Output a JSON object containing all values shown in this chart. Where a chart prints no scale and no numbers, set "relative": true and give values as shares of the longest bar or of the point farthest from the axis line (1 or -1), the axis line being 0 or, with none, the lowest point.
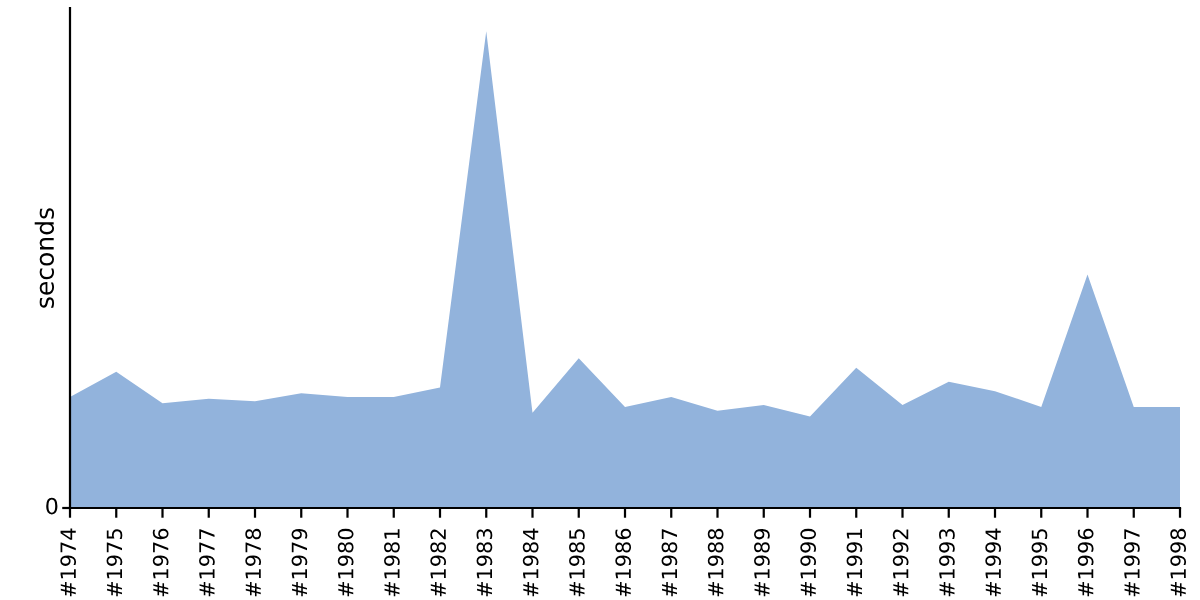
{
  "chart_data": {
    "type": "area",
    "ylabel": "seconds",
    "relative": true,
    "annotations": [
      "0"
    ],
    "color": "#92b3dc",
    "grid": false,
    "categories": [
      "#1974",
      "#1975",
      "#1976",
      "#1977",
      "#1978",
      "#1979",
      "#1980",
      "#1981",
      "#1982",
      "#1983",
      "#1984",
      "#1985",
      "#1986",
      "#1987",
      "#1988",
      "#1989",
      "#1990",
      "#1991",
      "#1992",
      "#1993",
      "#1994",
      "#1995",
      "#1996",
      "#1997",
      "#1998"
    ],
    "values": [
      0.233,
      0.286,
      0.22,
      0.229,
      0.224,
      0.241,
      0.233,
      0.233,
      0.253,
      1,
      0.2,
      0.314,
      0.212,
      0.233,
      0.204,
      0.216,
      0.192,
      0.294,
      0.216,
      0.265,
      0.245,
      0.212,
      0.49,
      0.212,
      0.212
    ]
  }
}
